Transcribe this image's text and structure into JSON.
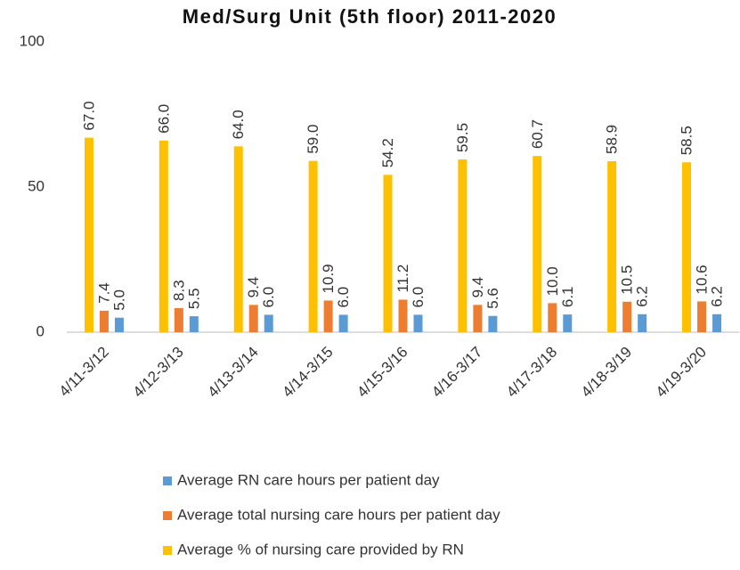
{
  "chart_data": {
    "type": "bar",
    "title": "Med/Surg Unit (5th floor) 2011-2020",
    "categories": [
      "4/11-3/12",
      "4/12-3/13",
      "4/13-3/14",
      "4/14-3/15",
      "4/15-3/16",
      "4/16-3/17",
      "4/17-3/18",
      "4/18-3/19",
      "4/19-3/20"
    ],
    "series": [
      {
        "name": "Average RN care hours per patient day",
        "color": "#5b9bd5",
        "values": [
          5.0,
          5.5,
          6.0,
          6.0,
          6.0,
          5.6,
          6.1,
          6.2,
          6.2
        ],
        "value_labels": [
          "5.0",
          "5.5",
          "6.0",
          "6.0",
          "6.0",
          "5.6",
          "6.1",
          "6.2",
          "6.2"
        ]
      },
      {
        "name": "Average total nursing care hours per patient day",
        "color": "#ed7d31",
        "values": [
          7.4,
          8.3,
          9.4,
          10.9,
          11.2,
          9.4,
          10.0,
          10.5,
          10.6
        ],
        "value_labels": [
          "7.4",
          "8.3",
          "9.4",
          "10.9",
          "11.2",
          "9.4",
          "10.0",
          "10.5",
          "10.6"
        ]
      },
      {
        "name": "Average % of nursing care provided by RN",
        "color": "#ffc000",
        "values": [
          67.0,
          66.0,
          64.0,
          59.0,
          54.2,
          59.5,
          60.7,
          58.9,
          58.5
        ],
        "value_labels": [
          "67.0",
          "66.0",
          "64.0",
          "59.0",
          "54.2",
          "59.5",
          "60.7",
          "58.9",
          "58.5"
        ]
      }
    ],
    "ylim": [
      0,
      100
    ],
    "yticks": [
      0,
      50,
      100
    ],
    "grid": false,
    "legend": "bottom"
  }
}
